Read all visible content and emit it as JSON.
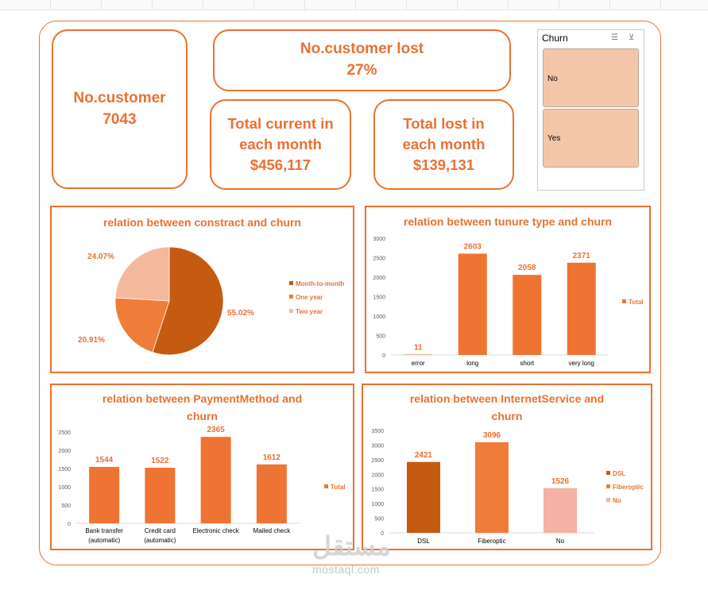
{
  "kpis": {
    "customers_label": "No.customer",
    "customers_value": "7043",
    "lost_label": "No.customer lost",
    "lost_value": "27%",
    "current_line1": "Total current in",
    "current_line2": "each month",
    "current_value": "$456,117",
    "lostmonth_line1": "Total lost in",
    "lostmonth_line2": "each month",
    "lostmonth_value": "$139,131"
  },
  "slicer": {
    "title": "Churn",
    "items": [
      "No",
      "Yes"
    ],
    "icons": [
      "multi-select-icon",
      "clear-filter-icon"
    ]
  },
  "charts": {
    "contract": {
      "title": "relation between constract and churn",
      "chart_data": {
        "type": "pie",
        "title": "relation between constract and churn",
        "legend": "right",
        "categories": [
          "Month-to-month",
          "One year",
          "Two year"
        ],
        "values": [
          55.02,
          20.91,
          24.07
        ],
        "labels": [
          "55.02%",
          "20.91%",
          "24.07%"
        ],
        "colors": [
          "#c55a11",
          "#f07c3a",
          "#f4b89b"
        ]
      }
    },
    "tenure": {
      "title": "relation between tunure type and churn",
      "chart_data": {
        "type": "bar",
        "title": "relation between tunure type and churn",
        "legend": "right",
        "categories": [
          "error",
          "long",
          "short",
          "very long"
        ],
        "series": [
          {
            "name": "Total",
            "values": [
              11,
              2603,
              2058,
              2371
            ]
          }
        ],
        "ylim": [
          0,
          3000
        ],
        "yticks": [
          "0",
          "500",
          "1000",
          "1500",
          "2000",
          "2500",
          "3000"
        ]
      }
    },
    "payment": {
      "title_line1": "relation between PaymentMethod and",
      "title_line2": "churn",
      "chart_data": {
        "type": "bar",
        "title": "relation between PaymentMethod and churn",
        "legend": "right",
        "categories": [
          [
            "Bank transfer",
            "(automatic)"
          ],
          [
            "Credit card",
            "(automatic)"
          ],
          [
            "Electronic check"
          ],
          [
            "Mailed check"
          ]
        ],
        "series": [
          {
            "name": "Total",
            "values": [
              1544,
              1522,
              2365,
              1612
            ]
          }
        ],
        "ylim": [
          0,
          2500
        ],
        "yticks": [
          "0",
          "500",
          "1000",
          "1500",
          "2000",
          "2500"
        ]
      }
    },
    "internet": {
      "title_line1": "relation between InternetService and",
      "title_line2": "churn",
      "chart_data": {
        "type": "bar",
        "title": "relation between InternetService and churn",
        "legend": "right",
        "categories": [
          "DSL",
          "Fiberoptic",
          "No"
        ],
        "values": [
          2421,
          3096,
          1526
        ],
        "colors": [
          "#c55a11",
          "#f07c3a",
          "#f4b1a4"
        ],
        "ylim": [
          0,
          3500
        ],
        "yticks": [
          "0",
          "500",
          "1000",
          "1500",
          "2000",
          "2500",
          "3000",
          "3500"
        ]
      }
    }
  },
  "watermark": {
    "arabic": "مستقل",
    "latin": "mostaql.com"
  }
}
